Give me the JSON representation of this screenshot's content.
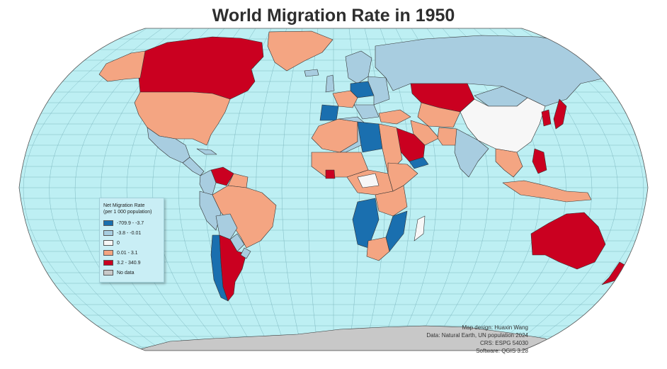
{
  "title": "World Migration Rate in 1950",
  "legend": {
    "title_line1": "Net Migration Rate",
    "title_line2": "(per 1 000 population)",
    "classes": [
      {
        "label": "-709.9 - -3.7",
        "color": "#1a6faf"
      },
      {
        "label": "-3.8 - -0.01",
        "color": "#a8cde0"
      },
      {
        "label": "0",
        "color": "#f7f7f7"
      },
      {
        "label": "0.01 - 3.1",
        "color": "#f4a582"
      },
      {
        "label": "3.2 - 340.9",
        "color": "#ca0020"
      },
      {
        "label": "No data",
        "color": "#c8c8c8"
      }
    ]
  },
  "credits": {
    "line1": "Map design: Huaxin Wang",
    "line2": "Data: Natural Earth, UN population 2024",
    "line3": "CRS: ESPG 54030",
    "line4": "Software: QGIS 3.28"
  },
  "colors": {
    "ocean": "#bdeff3",
    "graticule": "#7fb9c1",
    "border": "#333333"
  },
  "map": {
    "projection": "Robinson",
    "regions": [
      {
        "name": "Canada",
        "class": 4
      },
      {
        "name": "Greenland",
        "class": 3
      },
      {
        "name": "United States",
        "class": 3
      },
      {
        "name": "Mexico",
        "class": 1
      },
      {
        "name": "Central America",
        "class": 1
      },
      {
        "name": "Venezuela",
        "class": 4
      },
      {
        "name": "Colombia",
        "class": 1
      },
      {
        "name": "Peru",
        "class": 1
      },
      {
        "name": "Brazil",
        "class": 3
      },
      {
        "name": "Bolivia",
        "class": 1
      },
      {
        "name": "Paraguay",
        "class": 1
      },
      {
        "name": "Argentina",
        "class": 4
      },
      {
        "name": "Chile",
        "class": 0
      },
      {
        "name": "Russia",
        "class": 1
      },
      {
        "name": "Kazakhstan",
        "class": 4
      },
      {
        "name": "China",
        "class": 2
      },
      {
        "name": "Mongolia",
        "class": 1
      },
      {
        "name": "South Korea",
        "class": 4
      },
      {
        "name": "North Korea",
        "class": 0
      },
      {
        "name": "Japan",
        "class": 4
      },
      {
        "name": "India",
        "class": 1
      },
      {
        "name": "Saudi Arabia",
        "class": 4
      },
      {
        "name": "Yemen",
        "class": 0
      },
      {
        "name": "Spain",
        "class": 0
      },
      {
        "name": "Libya",
        "class": 0
      },
      {
        "name": "Angola",
        "class": 0
      },
      {
        "name": "Mozambique",
        "class": 0
      },
      {
        "name": "Madagascar",
        "class": 2
      },
      {
        "name": "Australia",
        "class": 4
      },
      {
        "name": "New Zealand",
        "class": 4
      },
      {
        "name": "Philippines",
        "class": 4
      },
      {
        "name": "Antarctica",
        "class": 5
      }
    ]
  }
}
